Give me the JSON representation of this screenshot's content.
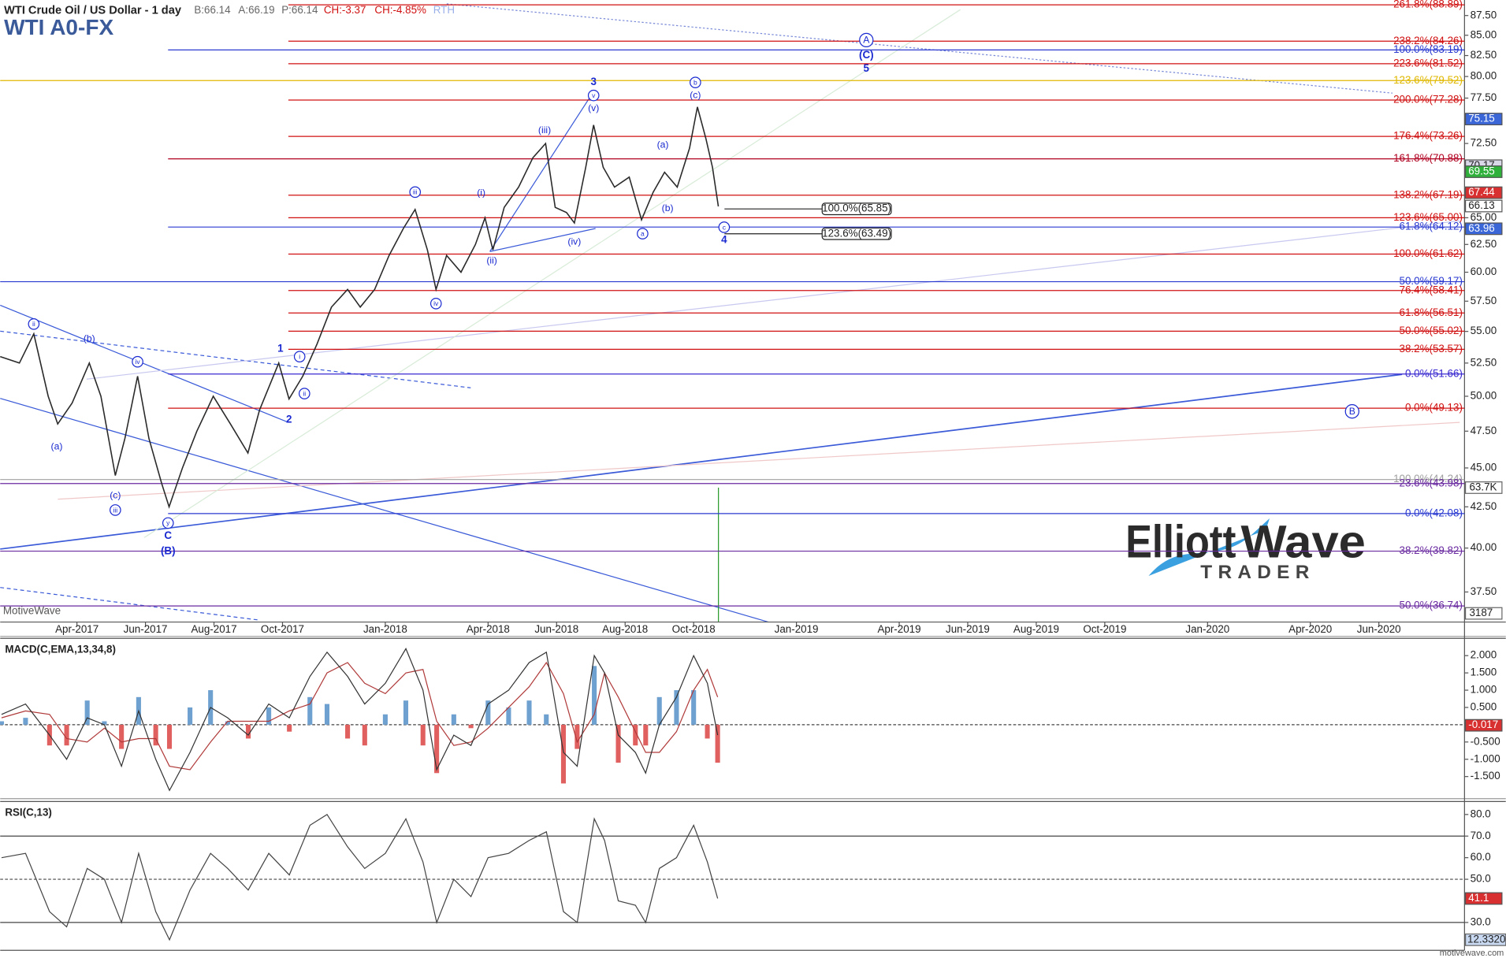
{
  "header": {
    "instrument": "WTI Crude Oil / US Dollar - 1 day",
    "bid": "B:66.14",
    "ask": "A:66.19",
    "price": "P:66.14",
    "change": "CH:-3.37",
    "change_pct": "CH:-4.85%",
    "session": "RTH",
    "symbol": "WTI A0-FX"
  },
  "logo": {
    "first": "Elliott",
    "second": "Wave",
    "tagline": "TRADER"
  },
  "footer": {
    "left": "MotiveWave",
    "right": "motivewave.com"
  },
  "side_tags": [
    "63.7K",
    "3187",
    "12.3320"
  ],
  "chart_data": [
    {
      "type": "line",
      "log_scale": true,
      "grid": false,
      "color": "#2a2a2a",
      "xlim": [
        0.76,
        43.5
      ],
      "ylim": [
        35.88,
        89.52
      ],
      "xticks": [
        {
          "value": 3,
          "label": "Apr-2017"
        },
        {
          "value": 5,
          "label": "Jun-2017"
        },
        {
          "value": 7,
          "label": "Aug-2017"
        },
        {
          "value": 9,
          "label": "Oct-2017"
        },
        {
          "value": 12,
          "label": "Jan-2018"
        },
        {
          "value": 15,
          "label": "Apr-2018"
        },
        {
          "value": 17,
          "label": "Jun-2018"
        },
        {
          "value": 19,
          "label": "Aug-2018"
        },
        {
          "value": 21,
          "label": "Oct-2018"
        },
        {
          "value": 24,
          "label": "Jan-2019"
        },
        {
          "value": 27,
          "label": "Apr-2019"
        },
        {
          "value": 29,
          "label": "Jun-2019"
        },
        {
          "value": 31,
          "label": "Aug-2019"
        },
        {
          "value": 33,
          "label": "Oct-2019"
        },
        {
          "value": 36,
          "label": "Jan-2020"
        },
        {
          "value": 39,
          "label": "Apr-2020"
        },
        {
          "value": 41,
          "label": "Jun-2020"
        }
      ],
      "yticks": [
        {
          "value": 87.5,
          "label": "87.50"
        },
        {
          "value": 85,
          "label": "85.00"
        },
        {
          "value": 82.5,
          "label": "82.50"
        },
        {
          "value": 80,
          "label": "80.00"
        },
        {
          "value": 77.5,
          "label": "77.50"
        },
        {
          "value": 75,
          "label": "75.00"
        },
        {
          "value": 72.5,
          "label": "72.50"
        },
        {
          "value": 70,
          "label": "70.00"
        },
        {
          "value": 67.5,
          "label": "67.50"
        },
        {
          "value": 65,
          "label": "65.00"
        },
        {
          "value": 62.5,
          "label": "62.50"
        },
        {
          "value": 60,
          "label": "60.00"
        },
        {
          "value": 57.5,
          "label": "57.50"
        },
        {
          "value": 55,
          "label": "55.00"
        },
        {
          "value": 52.5,
          "label": "52.50"
        },
        {
          "value": 50,
          "label": "50.00"
        },
        {
          "value": 47.5,
          "label": "47.50"
        },
        {
          "value": 45,
          "label": "45.00"
        },
        {
          "value": 42.5,
          "label": "42.50"
        },
        {
          "value": 40,
          "label": "40.00"
        },
        {
          "value": 37.5,
          "label": "37.50"
        }
      ],
      "x": [
        0.76,
        1.32,
        1.74,
        2.16,
        2.44,
        2.86,
        3.36,
        3.7,
        4.12,
        4.4,
        4.77,
        5.1,
        5.47,
        5.69,
        6.08,
        6.5,
        6.98,
        7.48,
        7.99,
        8.33,
        8.89,
        9.19,
        9.59,
        10.01,
        10.43,
        10.9,
        11.27,
        11.69,
        12.11,
        12.53,
        12.87,
        13.23,
        13.48,
        13.79,
        14.21,
        14.63,
        14.91,
        15.14,
        15.47,
        15.89,
        16.31,
        16.68,
        16.96,
        17.29,
        17.52,
        17.85,
        18.08,
        18.36,
        18.69,
        19.12,
        19.48,
        19.82,
        20.15,
        20.52,
        20.88,
        21.11,
        21.36,
        21.55,
        21.72
      ],
      "values": [
        53,
        52.5,
        54.8,
        50,
        48,
        49.5,
        52.5,
        50,
        44.5,
        47,
        51.5,
        47,
        44,
        42.5,
        45,
        47.5,
        50,
        48,
        46,
        49,
        52.5,
        49.8,
        51.5,
        54,
        57,
        58.5,
        57,
        58.5,
        61.5,
        64,
        65.8,
        62,
        58.5,
        61.5,
        60,
        62.5,
        65,
        62,
        66,
        68,
        71,
        72.5,
        66,
        65.5,
        64.5,
        70,
        74.5,
        70,
        68,
        69,
        64.8,
        67.5,
        69.5,
        68,
        72,
        76.5,
        73,
        70,
        66.1
      ],
      "fib_levels": [
        {
          "label": "261.8%(88.89)",
          "value": 88.89,
          "color": "#d01010",
          "from": 9.17
        },
        {
          "label": "238.2%(84.26)",
          "value": 84.26,
          "color": "#d01010",
          "from": 9.17
        },
        {
          "label": "100.0%(83.19)",
          "value": 83.19,
          "color": "#2a3ad0",
          "from": 5.66
        },
        {
          "label": "223.6%(81.52)",
          "value": 81.52,
          "color": "#d01010",
          "from": 9.17
        },
        {
          "label": "123.6%(79.52)",
          "value": 79.52,
          "color": "#e0b800",
          "from": 0.76
        },
        {
          "label": "200.0%(77.28)",
          "value": 77.28,
          "color": "#d01010",
          "from": 9.17
        },
        {
          "label": "176.4%(73.26)",
          "value": 73.26,
          "color": "#d01010",
          "from": 9.17
        },
        {
          "label": "161.8%(70.88)",
          "value": 70.88,
          "color": "#b00020",
          "from": 5.66
        },
        {
          "label": "138.2%(67.19)",
          "value": 67.19,
          "color": "#d01010",
          "from": 9.17
        },
        {
          "label": "123.6%(65.00)",
          "value": 65.0,
          "color": "#d01010",
          "from": 9.17
        },
        {
          "label": "61.8%(64.12)",
          "value": 64.12,
          "color": "#2a3ad0",
          "from": 5.66
        },
        {
          "label": "100.0%(61.62)",
          "value": 61.62,
          "color": "#d01010",
          "from": 9.17
        },
        {
          "label": "50.0%(59.17)",
          "value": 59.17,
          "color": "#2a3ad0",
          "from": 0.76
        },
        {
          "label": "76.4%(58.41)",
          "value": 58.41,
          "color": "#d01010",
          "from": 9.17
        },
        {
          "label": "61.8%(56.51)",
          "value": 56.51,
          "color": "#d01010",
          "from": 9.17
        },
        {
          "label": "50.0%(55.02)",
          "value": 55.02,
          "color": "#d01010",
          "from": 9.17
        },
        {
          "label": "38.2%(53.57)",
          "value": 53.57,
          "color": "#d01010",
          "from": 9.17
        },
        {
          "label": "0.0%(51.66)",
          "value": 51.66,
          "color": "#3a2ad0",
          "from": 5.66
        },
        {
          "label": "0.0%(49.13)",
          "value": 49.13,
          "color": "#d01010",
          "from": 5.66
        },
        {
          "label": "100.0%(44.24)",
          "value": 44.24,
          "color": "#a0a0a0",
          "from": 0.76
        },
        {
          "label": "23.6%(43.98)",
          "value": 43.98,
          "color": "#6a2aa0",
          "from": 0.76
        },
        {
          "label": "0.0%(42.08)",
          "value": 42.08,
          "color": "#2a3ad0",
          "from": 5.66
        },
        {
          "label": "38.2%(39.82)",
          "value": 39.82,
          "color": "#6a2aa0",
          "from": 0.76
        },
        {
          "label": "50.0%(36.74)",
          "value": 36.74,
          "color": "#6a2aa0",
          "from": 0.76
        }
      ],
      "callouts": [
        {
          "label": "100.0%(65.85)",
          "value": 65.85,
          "from": 21.9
        },
        {
          "label": "123.6%(63.49)",
          "value": 63.49,
          "from": 21.9
        }
      ],
      "wave_labels": [
        {
          "text": "ii",
          "x": 1.74,
          "y": 55.6,
          "mark": "circle"
        },
        {
          "text": "(b)",
          "x": 3.36,
          "y": 54.4,
          "mark": "plain"
        },
        {
          "text": "iv",
          "x": 4.77,
          "y": 52.6,
          "mark": "circle"
        },
        {
          "text": "(a)",
          "x": 2.41,
          "y": 46.4,
          "mark": "plain"
        },
        {
          "text": "(c)",
          "x": 4.12,
          "y": 43.2,
          "mark": "plain"
        },
        {
          "text": "iii",
          "x": 4.12,
          "y": 42.3,
          "mark": "circle"
        },
        {
          "text": "y",
          "x": 5.66,
          "y": 41.5,
          "mark": "circle"
        },
        {
          "text": "C",
          "x": 5.66,
          "y": 40.7,
          "mark": "bold"
        },
        {
          "text": "(B)",
          "x": 5.66,
          "y": 39.8,
          "mark": "bold"
        },
        {
          "text": "1",
          "x": 8.94,
          "y": 53.6,
          "mark": "bold"
        },
        {
          "text": "i",
          "x": 9.5,
          "y": 53.0,
          "mark": "circle"
        },
        {
          "text": "ii",
          "x": 9.64,
          "y": 50.2,
          "mark": "circle"
        },
        {
          "text": "2",
          "x": 9.19,
          "y": 48.3,
          "mark": "bold"
        },
        {
          "text": "iii",
          "x": 12.87,
          "y": 67.5,
          "mark": "circle"
        },
        {
          "text": "iv",
          "x": 13.48,
          "y": 57.3,
          "mark": "circle"
        },
        {
          "text": "(i)",
          "x": 14.8,
          "y": 67.4,
          "mark": "plain"
        },
        {
          "text": "(ii)",
          "x": 15.11,
          "y": 61.0,
          "mark": "plain"
        },
        {
          "text": "(iii)",
          "x": 16.65,
          "y": 73.9,
          "mark": "plain"
        },
        {
          "text": "(iv)",
          "x": 17.52,
          "y": 62.7,
          "mark": "plain"
        },
        {
          "text": "(v)",
          "x": 18.08,
          "y": 76.3,
          "mark": "plain"
        },
        {
          "text": "v",
          "x": 18.08,
          "y": 77.8,
          "mark": "circle"
        },
        {
          "text": "3",
          "x": 18.08,
          "y": 79.3,
          "mark": "bold"
        },
        {
          "text": "(a)",
          "x": 20.1,
          "y": 72.3,
          "mark": "plain"
        },
        {
          "text": "(b)",
          "x": 20.24,
          "y": 65.9,
          "mark": "plain"
        },
        {
          "text": "a",
          "x": 19.51,
          "y": 63.5,
          "mark": "circle"
        },
        {
          "text": "b",
          "x": 21.05,
          "y": 79.3,
          "mark": "circle"
        },
        {
          "text": "(c)",
          "x": 21.05,
          "y": 77.8,
          "mark": "plain"
        },
        {
          "text": "c",
          "x": 21.89,
          "y": 64.1,
          "mark": "circle"
        },
        {
          "text": "4",
          "x": 21.89,
          "y": 62.9,
          "mark": "bold"
        },
        {
          "text": "A",
          "x": 26.04,
          "y": 84.4,
          "mark": "circle"
        },
        {
          "text": "(C)",
          "x": 26.04,
          "y": 82.5,
          "mark": "bold"
        },
        {
          "text": "5",
          "x": 26.04,
          "y": 80.9,
          "mark": "bold"
        },
        {
          "text": "B",
          "x": 40.22,
          "y": 48.9,
          "mark": "circle"
        }
      ],
      "tags": [
        {
          "value": 75.15,
          "label": "75.15",
          "color": "#3a66d8"
        },
        {
          "value": 70.17,
          "label": "70.17",
          "color": "#d8d8e8"
        },
        {
          "value": 69.55,
          "label": "69.55",
          "color": "#2fb03a"
        },
        {
          "value": 67.44,
          "label": "67.44",
          "color": "#d83030"
        },
        {
          "value": 66.13,
          "label": "66.13",
          "color": "#ffffff"
        },
        {
          "value": 63.96,
          "label": "63.96",
          "color": "#3a66d8"
        }
      ]
    },
    {
      "type": "macd",
      "title": "MACD(C,EMA,13,34,8)",
      "xlim": [
        0.76,
        43.5
      ],
      "ylim": [
        -2.14,
        2.5
      ],
      "yticks": [
        {
          "value": 2,
          "label": "2.000"
        },
        {
          "value": 1.5,
          "label": "1.500"
        },
        {
          "value": 1,
          "label": "1.000"
        },
        {
          "value": 0.5,
          "label": "0.500"
        },
        {
          "value": -0.5,
          "label": "-0.500"
        },
        {
          "value": -1,
          "label": "-1.000"
        },
        {
          "value": -1.5,
          "label": "-1.500"
        }
      ],
      "guide_lines": [
        0
      ],
      "colors": {
        "macd": "#333333",
        "signal": "#b03a3a",
        "up": "#6ea0d0",
        "down": "#e06060"
      },
      "x": [
        0.8,
        1.5,
        2.2,
        2.7,
        3.3,
        3.8,
        4.3,
        4.8,
        5.3,
        5.7,
        6.3,
        6.9,
        7.4,
        8.0,
        8.6,
        9.2,
        9.8,
        10.3,
        10.9,
        11.4,
        12.0,
        12.6,
        13.1,
        13.5,
        14.0,
        14.5,
        15.0,
        15.6,
        16.2,
        16.7,
        17.2,
        17.6,
        18.1,
        18.4,
        18.8,
        19.3,
        19.6,
        20.0,
        20.5,
        21.0,
        21.4,
        21.7
      ],
      "macd": [
        0.3,
        0.6,
        -0.3,
        -1.0,
        0.2,
        0.0,
        -1.2,
        0.4,
        -1.0,
        -1.9,
        -0.8,
        0.5,
        0.2,
        -0.3,
        0.6,
        0.2,
        1.4,
        2.1,
        1.4,
        0.6,
        1.2,
        2.2,
        1.0,
        -1.3,
        -0.3,
        -0.6,
        0.6,
        1.0,
        1.8,
        2.1,
        -0.8,
        -1.2,
        2.0,
        1.5,
        -0.3,
        -0.8,
        -1.4,
        0.0,
        0.8,
        2.0,
        1.2,
        -0.3
      ],
      "signal": [
        0.2,
        0.4,
        0.3,
        -0.4,
        -0.5,
        -0.1,
        -0.5,
        -0.4,
        -0.4,
        -1.2,
        -1.3,
        -0.5,
        0.1,
        0.1,
        0.1,
        0.4,
        0.6,
        1.5,
        1.8,
        1.2,
        0.9,
        1.5,
        1.6,
        0.1,
        -0.6,
        -0.5,
        -0.1,
        0.5,
        1.1,
        1.8,
        0.9,
        -0.5,
        0.3,
        1.5,
        0.8,
        -0.2,
        -0.8,
        -0.8,
        -0.2,
        1.0,
        1.6,
        0.8
      ],
      "histogram": [
        0.1,
        0.2,
        -0.6,
        -0.6,
        0.7,
        0.1,
        -0.7,
        0.8,
        -0.6,
        -0.7,
        0.5,
        1.0,
        0.1,
        -0.4,
        0.5,
        -0.2,
        0.8,
        0.6,
        -0.4,
        -0.6,
        0.3,
        0.7,
        -0.6,
        -1.4,
        0.3,
        -0.1,
        0.7,
        0.5,
        0.7,
        0.3,
        -1.7,
        -0.7,
        1.7,
        0.0,
        -1.1,
        -0.6,
        -0.6,
        0.8,
        1.0,
        1.0,
        -0.4,
        -1.1
      ],
      "tags": [
        {
          "value": -0.017,
          "label": "-0.017",
          "color": "#d83030"
        }
      ]
    },
    {
      "type": "line",
      "title": "RSI(C,13)",
      "color": "#444444",
      "xlim": [
        0.76,
        43.5
      ],
      "ylim": [
        17.1,
        86
      ],
      "yticks": [
        {
          "value": 80,
          "label": "80.0"
        },
        {
          "value": 70,
          "label": "70.0"
        },
        {
          "value": 60,
          "label": "60.0"
        },
        {
          "value": 50,
          "label": "50.0"
        },
        {
          "value": 40,
          "label": "40.0"
        },
        {
          "value": 30,
          "label": "30.0"
        }
      ],
      "guide_lines": [
        70,
        50,
        30
      ],
      "x": [
        0.8,
        1.5,
        2.2,
        2.7,
        3.3,
        3.8,
        4.3,
        4.8,
        5.3,
        5.7,
        6.3,
        6.9,
        7.4,
        8.0,
        8.6,
        9.2,
        9.8,
        10.3,
        10.9,
        11.4,
        12.0,
        12.6,
        13.1,
        13.5,
        14.0,
        14.5,
        15.0,
        15.6,
        16.2,
        16.7,
        17.2,
        17.6,
        18.1,
        18.4,
        18.8,
        19.3,
        19.6,
        20.0,
        20.5,
        21.0,
        21.4,
        21.7
      ],
      "values": [
        60,
        62,
        35,
        28,
        55,
        50,
        30,
        62,
        35,
        22,
        45,
        62,
        55,
        45,
        62,
        52,
        75,
        80,
        65,
        55,
        62,
        78,
        58,
        30,
        50,
        42,
        60,
        62,
        68,
        72,
        35,
        30,
        78,
        68,
        40,
        38,
        30,
        55,
        60,
        75,
        58,
        41.1
      ],
      "tags": [
        {
          "value": 41.1,
          "label": "41.1",
          "color": "#d83030"
        }
      ]
    }
  ]
}
